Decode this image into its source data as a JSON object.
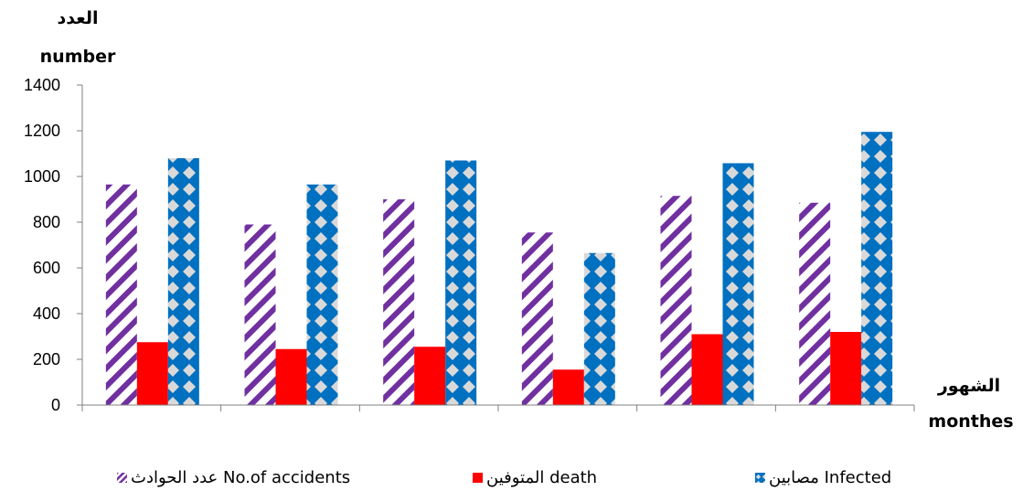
{
  "chart_data": {
    "type": "bar",
    "categories": [
      "",
      "",
      "",
      "",
      "",
      ""
    ],
    "series": [
      {
        "name": "عدد الحوادث No.of accidents",
        "values": [
          965,
          790,
          900,
          755,
          915,
          885
        ],
        "color": "#7030A0",
        "pattern": "diagonal-stripes"
      },
      {
        "name": "المتوفين death",
        "values": [
          275,
          245,
          255,
          155,
          310,
          320
        ],
        "color": "#FF0000",
        "pattern": "solid"
      },
      {
        "name": "مصابين Infected",
        "values": [
          1080,
          965,
          1070,
          665,
          1058,
          1195
        ],
        "color": "#0070C0",
        "pattern": "diamond-checker"
      }
    ],
    "ylabel_ar": "العدد",
    "ylabel_en": "number",
    "xlabel_ar": "الشهور",
    "xlabel_en": "monthes",
    "ylim": [
      0,
      1400
    ],
    "yticks": [
      "0",
      "200",
      "400",
      "600",
      "800",
      "1000",
      "1200",
      "1400"
    ],
    "grid": false,
    "legend_position": "bottom",
    "legend": [
      {
        "label": "عدد الحوادث No.of accidents"
      },
      {
        "label": "المتوفين death"
      },
      {
        "label": "مصابين Infected"
      }
    ]
  }
}
